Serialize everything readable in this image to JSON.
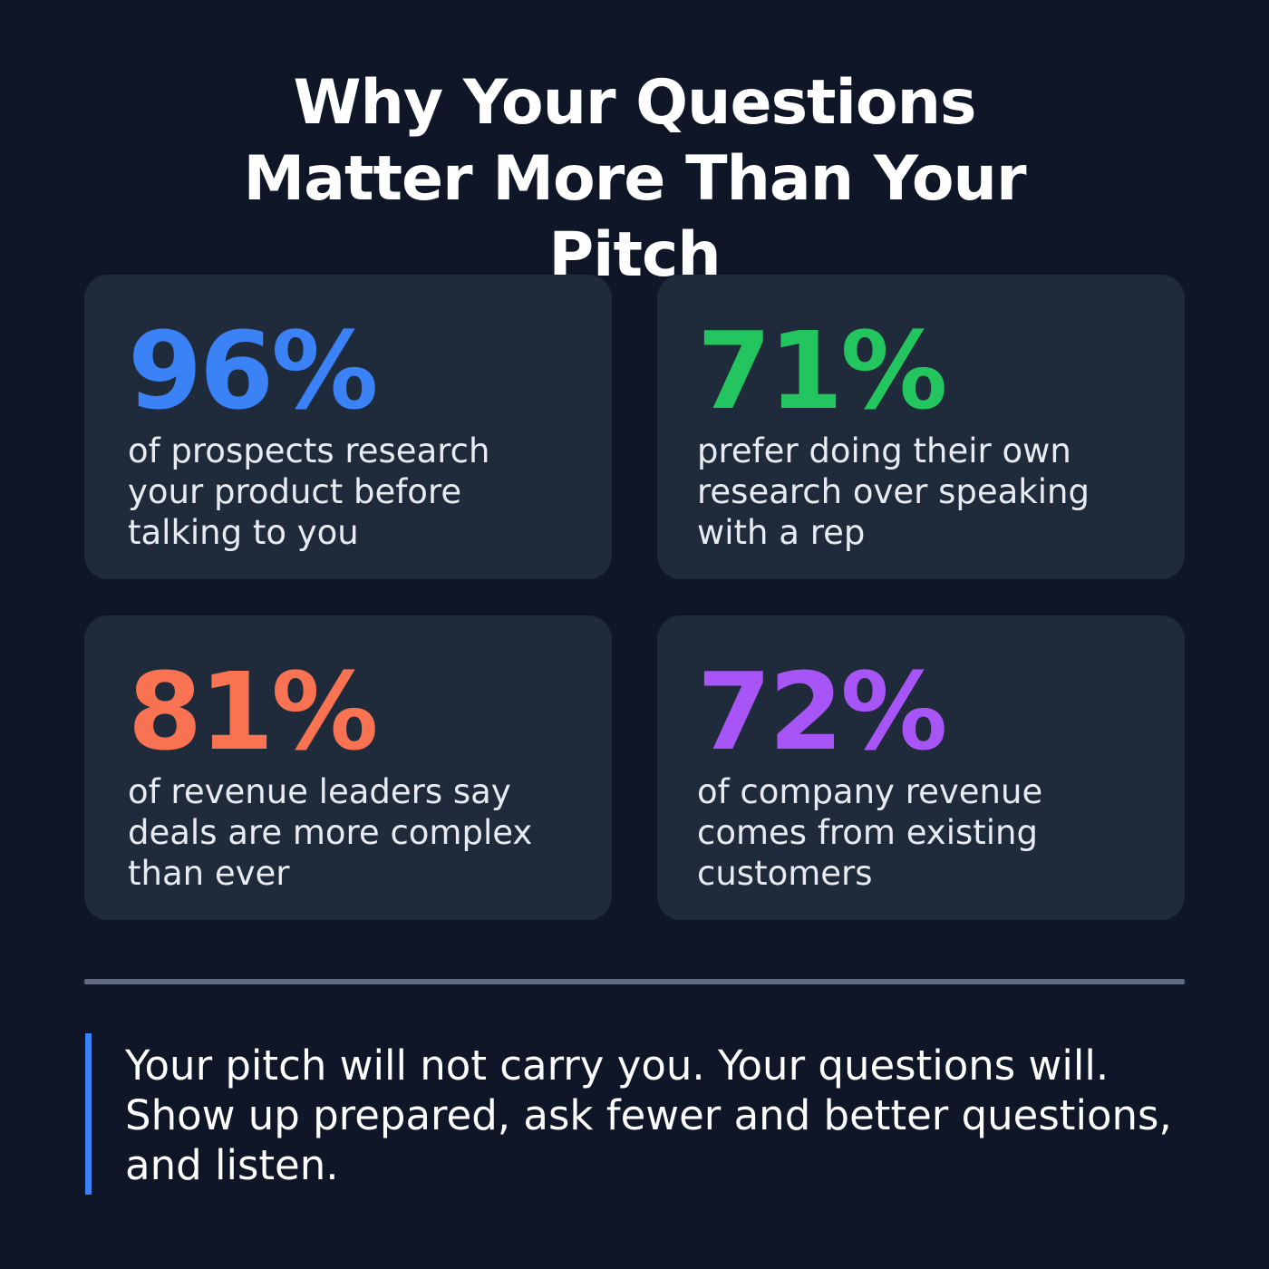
{
  "title": "Why Your Questions Matter More Than Your Pitch",
  "stats": [
    {
      "value": "96%",
      "description": "of prospects research your product before talking to you",
      "color": "#3b82f6"
    },
    {
      "value": "71%",
      "description": "prefer doing their own research over speaking with a rep",
      "color": "#22c55e"
    },
    {
      "value": "81%",
      "description": "of revenue leaders say deals are more complex than ever",
      "color": "#f97352"
    },
    {
      "value": "72%",
      "description": "of company revenue comes from existing customers",
      "color": "#a855f7"
    }
  ],
  "quote": {
    "text": "Your pitch will not carry you. Your questions will. Show up prepared, ask fewer and better questions, and listen.",
    "accent_color": "#3b82f6"
  }
}
